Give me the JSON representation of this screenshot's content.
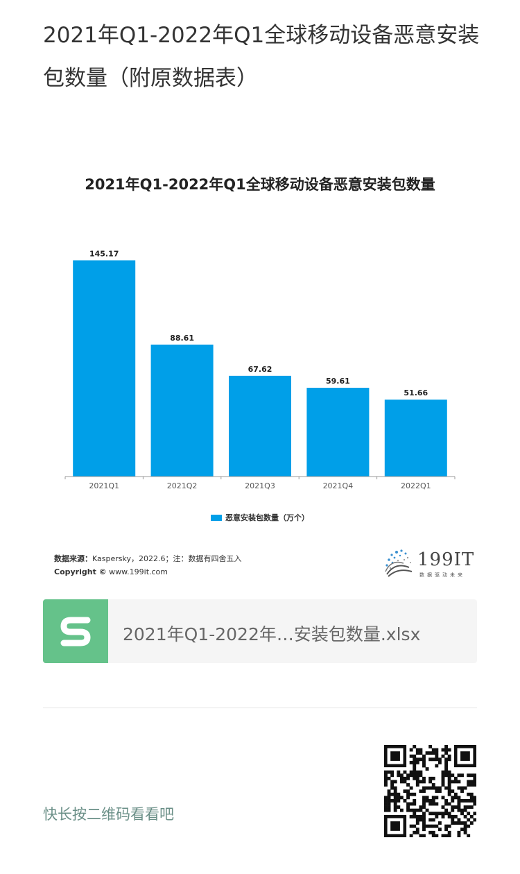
{
  "article": {
    "title": "2021年Q1-2022年Q1全球移动设备恶意安装包数量（附原数据表）"
  },
  "chart_data": {
    "type": "bar",
    "title": "2021年Q1-2022年Q1全球移动设备恶意安装包数量",
    "categories": [
      "2021Q1",
      "2021Q2",
      "2021Q3",
      "2021Q4",
      "2022Q1"
    ],
    "series": [
      {
        "name": "恶意安装包数量（万个）",
        "values": [
          145.17,
          88.61,
          67.62,
          59.61,
          51.66
        ],
        "color": "#009fe8"
      }
    ],
    "xlabel": "",
    "ylabel": "",
    "ylim": [
      0,
      155
    ],
    "grid": false,
    "legend_position": "bottom",
    "data_labels": true
  },
  "chart_footer": {
    "source_label": "数据来源：",
    "source_text": "Kaspersky，2022.6；注：数据有四舍五入",
    "copyright_label": "Copyright ©",
    "copyright_text": " www.199it.com"
  },
  "brand": {
    "name": "199IT",
    "slogan": "数据驱动未来"
  },
  "attachment": {
    "file_name": "2021年Q1-2022年…安装包数量.xlsx",
    "icon": "spreadsheet-s-icon",
    "icon_color": "#65c28a"
  },
  "qr": {
    "prompt": "快长按二维码看看吧",
    "icon": "qr-code-icon"
  }
}
